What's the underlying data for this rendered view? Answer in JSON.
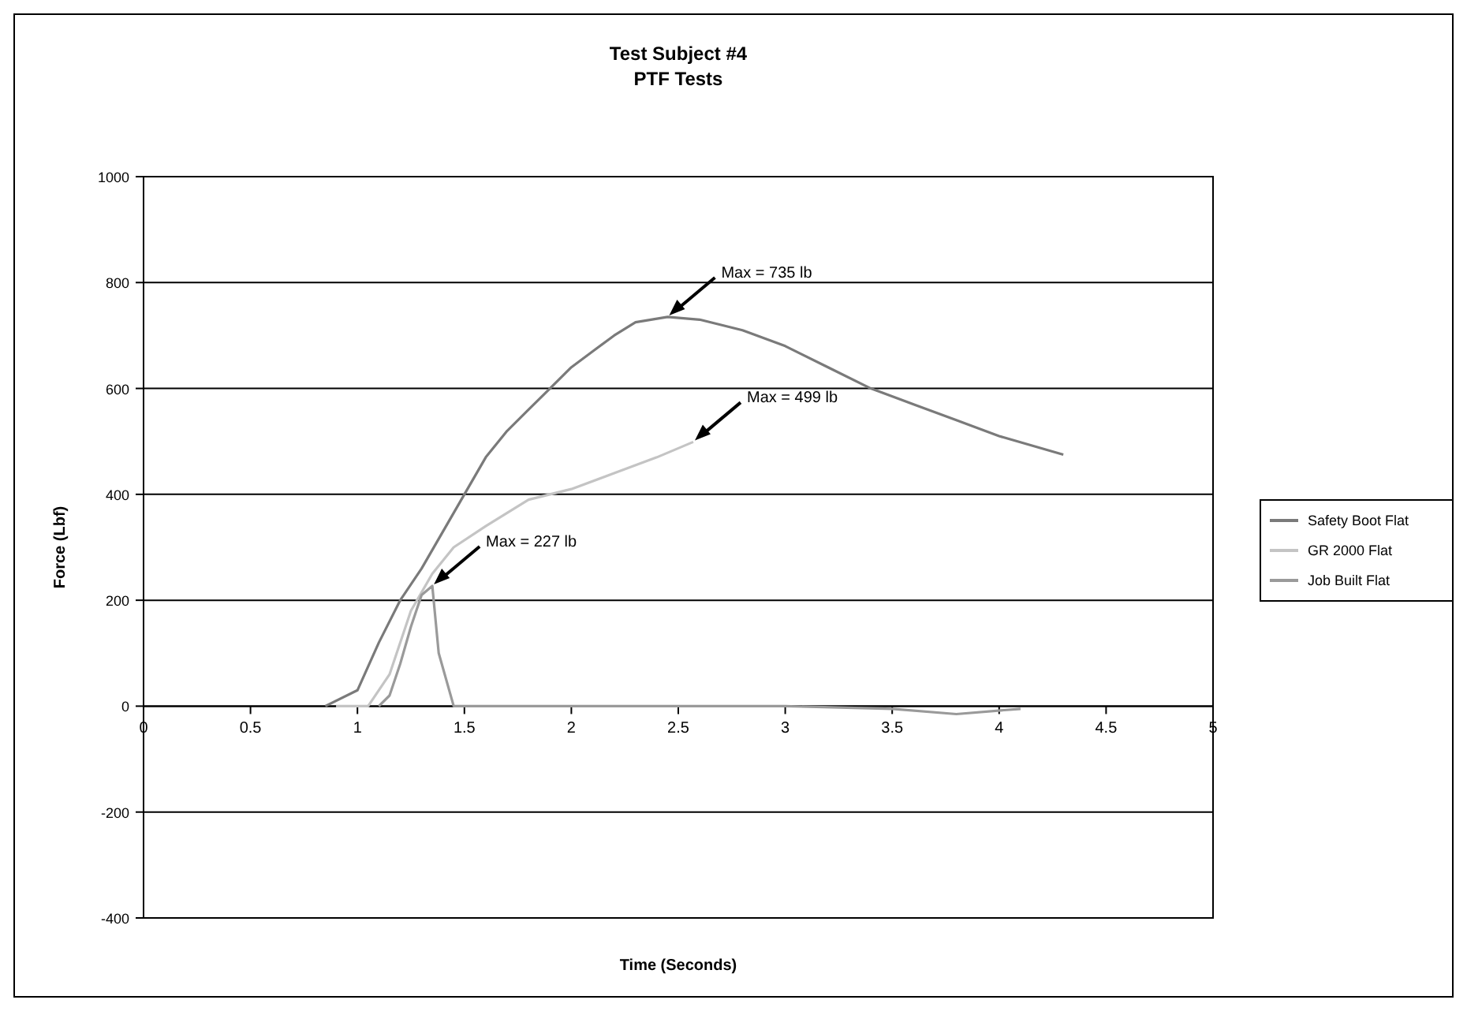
{
  "chart_data": {
    "type": "line",
    "title": "Test Subject #4",
    "subtitle": "PTF Tests",
    "xlabel": "Time (Seconds)",
    "ylabel": "Force (Lbf)",
    "xlim": [
      0,
      5
    ],
    "xticks": [
      0,
      0.5,
      1,
      1.5,
      2,
      2.5,
      3,
      3.5,
      4,
      4.5,
      5
    ],
    "ylim": [
      -400,
      1000
    ],
    "yticks": [
      -400,
      -200,
      0,
      200,
      400,
      600,
      800,
      1000
    ],
    "grid": "y",
    "legend": "right",
    "marker": "none",
    "line_style": "solid",
    "series": [
      {
        "name": "Safety Boot Flat",
        "color": "#7a7a7a",
        "x": [
          0.85,
          1.0,
          1.1,
          1.2,
          1.3,
          1.4,
          1.5,
          1.6,
          1.7,
          1.8,
          1.9,
          2.0,
          2.1,
          2.2,
          2.3,
          2.45,
          2.6,
          2.8,
          3.0,
          3.2,
          3.4,
          3.6,
          3.8,
          4.0,
          4.3
        ],
        "values": [
          0,
          30,
          120,
          200,
          260,
          330,
          400,
          470,
          520,
          560,
          600,
          640,
          670,
          700,
          725,
          735,
          730,
          710,
          680,
          640,
          600,
          570,
          540,
          510,
          475
        ]
      },
      {
        "name": "GR 2000 Flat",
        "color": "#c4c4c4",
        "x": [
          0.9,
          1.05,
          1.15,
          1.25,
          1.35,
          1.45,
          1.6,
          1.8,
          2.0,
          2.2,
          2.4,
          2.57
        ],
        "values": [
          0,
          0,
          60,
          180,
          250,
          300,
          340,
          390,
          410,
          440,
          470,
          499
        ]
      },
      {
        "name": "Job Built Flat",
        "color": "#9a9a9a",
        "x": [
          1.1,
          1.15,
          1.2,
          1.25,
          1.3,
          1.35,
          1.38,
          1.45,
          2.0,
          3.0,
          3.5,
          3.8,
          4.1
        ],
        "values": [
          0,
          20,
          80,
          150,
          210,
          227,
          100,
          0,
          0,
          0,
          -5,
          -15,
          -5
        ]
      }
    ],
    "annotations": [
      {
        "text": "Max = 735 lb",
        "x": 2.45,
        "y": 735
      },
      {
        "text": "Max = 499 lb",
        "x": 2.57,
        "y": 499
      },
      {
        "text": "Max = 227 lb",
        "x": 1.35,
        "y": 227
      }
    ]
  }
}
